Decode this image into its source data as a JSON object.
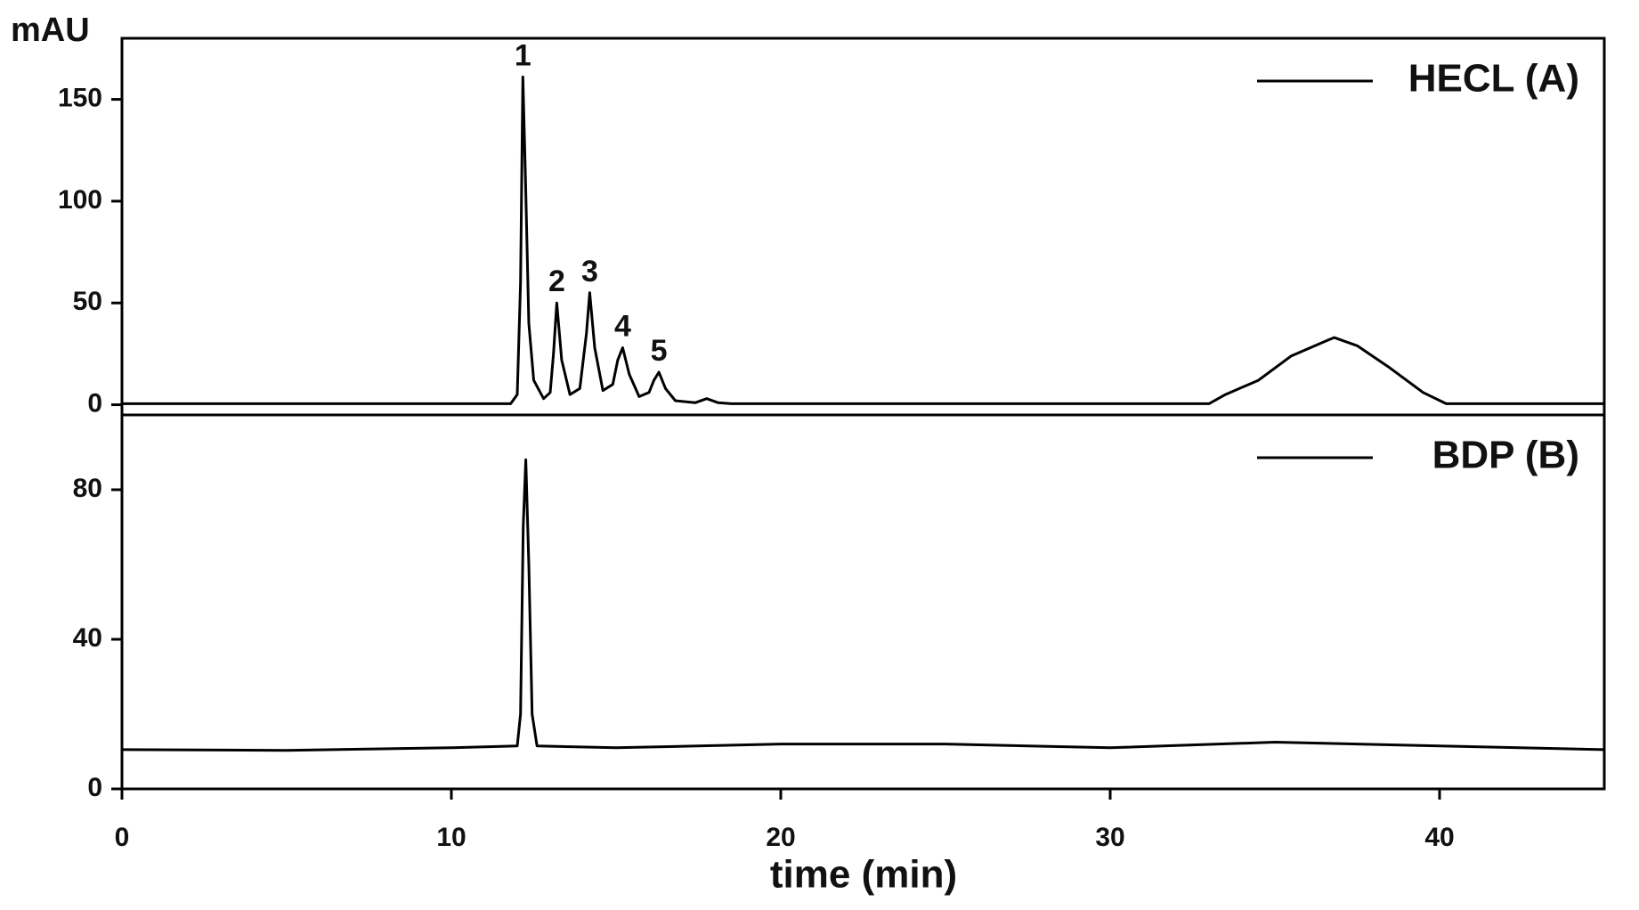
{
  "chart_data": [
    {
      "type": "line",
      "ylabel": "mAU",
      "legend": "upper right",
      "xlim": [
        0,
        45
      ],
      "ylim": [
        -5,
        180
      ],
      "yticks": [
        0,
        50,
        100,
        150
      ],
      "x": [
        0,
        11.8,
        12.0,
        12.1,
        12.17,
        12.25,
        12.35,
        12.5,
        12.8,
        13.0,
        13.1,
        13.2,
        13.35,
        13.6,
        13.9,
        14.1,
        14.2,
        14.35,
        14.6,
        14.9,
        15.05,
        15.2,
        15.4,
        15.7,
        16.0,
        16.15,
        16.3,
        16.5,
        16.8,
        17.4,
        17.75,
        18.1,
        18.5,
        33.0,
        33.5,
        34.5,
        35.5,
        36.5,
        36.8,
        37.5,
        38.5,
        39.5,
        40.2,
        45
      ],
      "series": [
        {
          "name": "HECL (A)",
          "color": "#000000",
          "values": [
            0.5,
            0.5,
            5,
            60,
            161,
            110,
            40,
            12,
            3,
            6,
            25,
            50,
            22,
            5,
            8,
            35,
            55,
            28,
            7,
            10,
            22,
            28,
            15,
            4,
            6,
            12,
            16,
            8,
            2,
            1,
            3,
            1,
            0.5,
            0.5,
            5,
            12,
            24,
            31,
            33,
            29,
            18,
            6,
            0.5,
            0.5
          ]
        }
      ],
      "annotations": [
        {
          "text": "1",
          "x": 12.17
        },
        {
          "text": "2",
          "x": 13.2
        },
        {
          "text": "3",
          "x": 14.2
        },
        {
          "text": "4",
          "x": 15.2
        },
        {
          "text": "5",
          "x": 16.3
        }
      ]
    },
    {
      "type": "line",
      "xlabel": "time (min)",
      "legend": "upper right",
      "xlim": [
        0,
        45
      ],
      "xticks": [
        0,
        10,
        20,
        30,
        40
      ],
      "ylim": [
        0,
        100
      ],
      "yticks": [
        0,
        40,
        80
      ],
      "x": [
        0,
        5,
        10,
        12.0,
        12.1,
        12.18,
        12.26,
        12.35,
        12.45,
        12.6,
        15,
        20,
        25,
        30,
        35,
        40,
        45
      ],
      "series": [
        {
          "name": "BDP (B)",
          "color": "#000000",
          "values": [
            10.5,
            10.3,
            11,
            11.5,
            20,
            70,
            88,
            60,
            20,
            11.5,
            11,
            12,
            12,
            11,
            12.5,
            11.5,
            10.5
          ]
        }
      ]
    }
  ]
}
